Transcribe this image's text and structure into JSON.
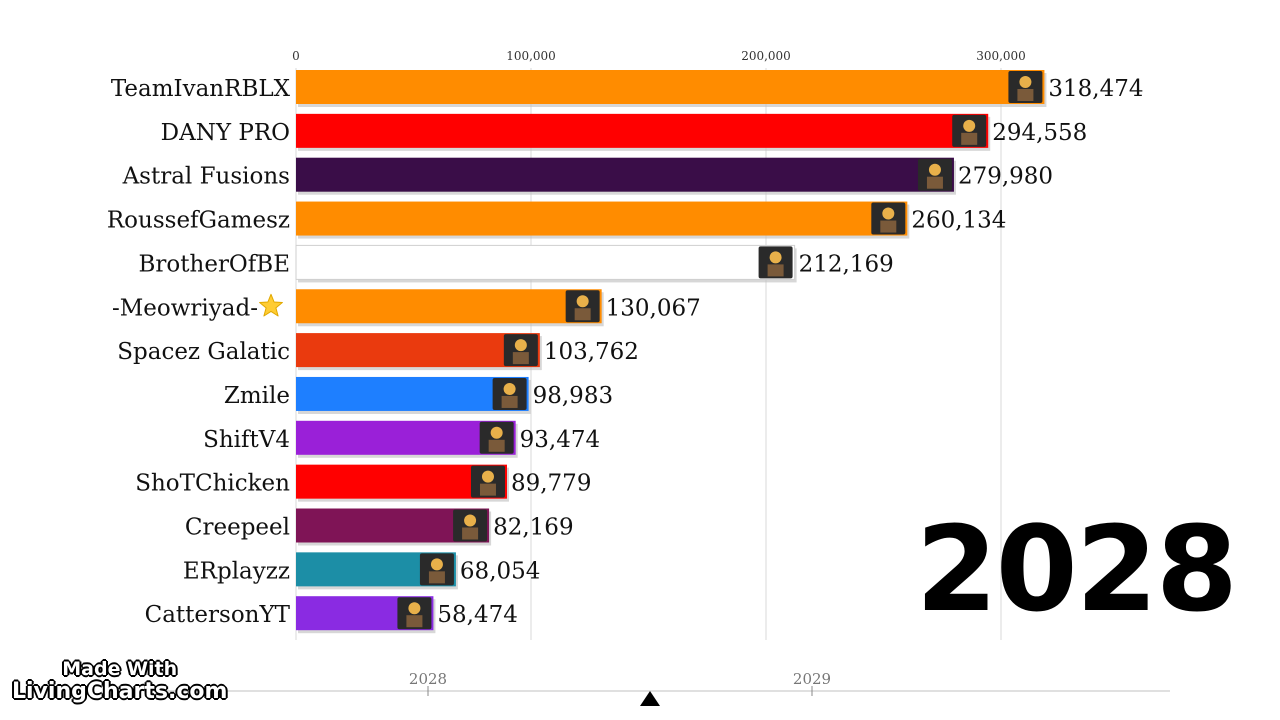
{
  "chart_data": {
    "type": "bar",
    "orientation": "horizontal",
    "x_ticks": [
      0,
      100000,
      200000,
      300000
    ],
    "x_tick_labels": [
      "0",
      "100,000",
      "200,000",
      "300,000"
    ],
    "xlim": [
      0,
      320000
    ],
    "grid": true,
    "categories": [
      "TeamIvanRBLX",
      "DANY PRO",
      "Astral Fusions",
      "RoussefGamesz",
      "BrotherOfBE",
      "-Meowriyad-",
      "Spacez Galatic",
      "Zmile",
      "ShiftV4",
      "ShoTChicken",
      "Creepeel",
      "ERplayzz",
      "CattersonYT"
    ],
    "values": [
      318474,
      294558,
      279980,
      260134,
      212169,
      130067,
      103762,
      98983,
      93474,
      89779,
      82169,
      68054,
      58474
    ],
    "value_labels": [
      "318,474",
      "294,558",
      "279,980",
      "260,134",
      "212,169",
      "130,067",
      "103,762",
      "98,983",
      "93,474",
      "89,779",
      "82,169",
      "68,054",
      "58,474"
    ],
    "bar_colors": [
      "#ff8c00",
      "#ff0000",
      "#3a0d48",
      "#ff8c00",
      "#ffffff",
      "#ff8c00",
      "#ea3a0e",
      "#1e7fff",
      "#9a20d8",
      "#ff0000",
      "#7f1456",
      "#1c8ea6",
      "#8a2be2"
    ],
    "label_icons": {
      "-Meowriyad-": "star-icon"
    }
  },
  "year": "2028",
  "timeline": {
    "labels": [
      "2028",
      "2029"
    ],
    "marker": "triangle-marker-icon"
  },
  "brand": {
    "line1": "Made With",
    "line2": "LivingCharts.com"
  }
}
